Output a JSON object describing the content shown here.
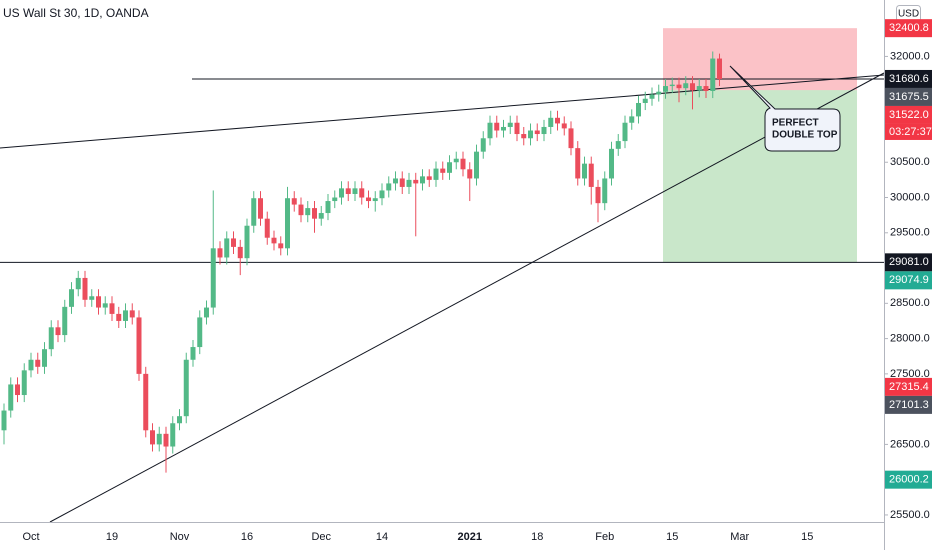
{
  "chart_data": {
    "type": "candlestick",
    "title": "US Wall St 30, 1D, OANDA",
    "currency": "USD",
    "annotation": [
      "PERFECT",
      "DOUBLE TOP"
    ],
    "up_color": "#53b987",
    "down_color": "#eb4d5c",
    "ylim": [
      25400,
      32800
    ],
    "yticks": [
      {
        "value": 32000,
        "label": "32000.0"
      },
      {
        "value": 30500,
        "label": "30500.0"
      },
      {
        "value": 30000,
        "label": "30000.0"
      },
      {
        "value": 29500,
        "label": "29500.0"
      },
      {
        "value": 28500,
        "label": "28500.0"
      },
      {
        "value": 28000,
        "label": "28000.0"
      },
      {
        "value": 27500,
        "label": "27500.0"
      },
      {
        "value": 26500,
        "label": "26500.0"
      },
      {
        "value": 25500,
        "label": "25500.0"
      }
    ],
    "categories": [
      null,
      null,
      null,
      null,
      "Oct",
      null,
      null,
      null,
      null,
      null,
      null,
      null,
      null,
      null,
      null,
      null,
      "19",
      null,
      null,
      null,
      null,
      null,
      null,
      null,
      null,
      null,
      "Nov",
      null,
      null,
      null,
      null,
      null,
      null,
      null,
      null,
      null,
      "16",
      null,
      null,
      null,
      null,
      null,
      null,
      null,
      null,
      null,
      null,
      "Dec",
      null,
      null,
      null,
      null,
      null,
      null,
      null,
      null,
      "14",
      null,
      null,
      null,
      null,
      null,
      null,
      null,
      null,
      null,
      null,
      null,
      null,
      "2021",
      null,
      null,
      null,
      null,
      null,
      null,
      null,
      null,
      null,
      "18",
      null,
      null,
      null,
      null,
      null,
      null,
      null,
      null,
      null,
      "Feb",
      null,
      null,
      null,
      null,
      null,
      null,
      null,
      null,
      null,
      "15",
      null,
      null,
      null,
      null,
      null,
      null,
      null,
      null,
      null,
      "Mar",
      null,
      null,
      null,
      null,
      null,
      null,
      null,
      null,
      null,
      "15"
    ],
    "open": [
      26700,
      26980,
      27350,
      27200,
      27550,
      27700,
      27600,
      27850,
      28160,
      28050,
      28450,
      28700,
      28860,
      28550,
      28600,
      28440,
      28500,
      28350,
      28250,
      28400,
      28300,
      27500,
      26700,
      26500,
      26650,
      26470,
      26800,
      26900,
      27700,
      27880,
      28300,
      28440,
      29280,
      29150,
      29420,
      29300,
      29140,
      29600,
      29990,
      29700,
      29430,
      29350,
      29280,
      29990,
      29900,
      29750,
      29850,
      29700,
      29780,
      29950,
      30000,
      30130,
      30050,
      30130,
      30000,
      29950,
      29990,
      30100,
      30200,
      30270,
      30150,
      30250,
      30200,
      30300,
      30250,
      30410,
      30350,
      30500,
      30550,
      30400,
      30270,
      30650,
      30840,
      31060,
      30950,
      31000,
      31060,
      30900,
      30840,
      30950,
      30900,
      31000,
      31130,
      31050,
      30980,
      30700,
      30270,
      30480,
      30150,
      29920,
      30270,
      30690,
      30800,
      31060,
      31150,
      31340,
      31400,
      31460,
      31500,
      31580,
      31600,
      31550,
      31620,
      31520,
      31580,
      31510,
      31970,
      null,
      null,
      null,
      null,
      null,
      null,
      null,
      null,
      null,
      null,
      null,
      null,
      null
    ],
    "high": [
      27080,
      27450,
      27450,
      27650,
      27800,
      27800,
      27950,
      28260,
      28260,
      28550,
      28800,
      28960,
      28960,
      28700,
      28700,
      28600,
      28600,
      28450,
      28500,
      28500,
      28400,
      27600,
      26800,
      26750,
      26750,
      26900,
      27000,
      27800,
      27980,
      28400,
      28540,
      30100,
      29380,
      29520,
      29520,
      29400,
      29700,
      30090,
      30090,
      29800,
      29530,
      29450,
      30150,
      30090,
      30000,
      29950,
      29950,
      29880,
      30050,
      30100,
      30230,
      30230,
      30230,
      30230,
      30100,
      30090,
      30200,
      30300,
      30370,
      30370,
      30350,
      30350,
      30400,
      30400,
      30510,
      30510,
      30600,
      30650,
      30650,
      30500,
      30750,
      30940,
      31160,
      31160,
      31100,
      31160,
      31160,
      31000,
      31050,
      31050,
      31100,
      31230,
      31230,
      31150,
      31080,
      30800,
      30580,
      30580,
      30250,
      30370,
      30790,
      30900,
      31160,
      31250,
      31440,
      31500,
      31560,
      31600,
      31680,
      31700,
      31700,
      31720,
      31720,
      31680,
      31680,
      32070,
      32040,
      null,
      null,
      null,
      null,
      null,
      null,
      null,
      null,
      null,
      null,
      null,
      null,
      null
    ],
    "low": [
      26500,
      26880,
      27100,
      27100,
      27450,
      27500,
      27500,
      27750,
      27950,
      27950,
      28350,
      28600,
      28450,
      28450,
      28340,
      28340,
      28250,
      28150,
      28150,
      28200,
      27400,
      26600,
      26400,
      26400,
      26100,
      26370,
      26700,
      26800,
      27600,
      27780,
      28200,
      28340,
      29050,
      29050,
      29200,
      28900,
      29040,
      29500,
      29600,
      29330,
      29250,
      29180,
      29180,
      29800,
      29650,
      29650,
      29500,
      29600,
      29680,
      29850,
      29900,
      29950,
      29950,
      29900,
      29850,
      29800,
      29890,
      30000,
      30100,
      30050,
      30050,
      29450,
      30100,
      30150,
      30150,
      30250,
      30250,
      30400,
      30300,
      29950,
      30170,
      30550,
      30740,
      30850,
      30850,
      30900,
      30800,
      30740,
      30740,
      30800,
      30800,
      30900,
      30950,
      30880,
      30600,
      30170,
      30170,
      29900,
      29650,
      29820,
      30170,
      30590,
      30700,
      30960,
      31050,
      31240,
      31300,
      31360,
      31400,
      31480,
      31350,
      31450,
      31250,
      31420,
      31410,
      31410,
      31580,
      null,
      null,
      null,
      null,
      null,
      null,
      null,
      null,
      null,
      null,
      null,
      null,
      null
    ],
    "close": [
      26980,
      27350,
      27200,
      27550,
      27700,
      27600,
      27850,
      28160,
      28050,
      28450,
      28700,
      28860,
      28550,
      28600,
      28440,
      28500,
      28350,
      28250,
      28400,
      28300,
      27500,
      26700,
      26500,
      26650,
      26470,
      26800,
      26900,
      27700,
      27880,
      28300,
      28440,
      29280,
      29150,
      29420,
      29300,
      29140,
      29600,
      29990,
      29700,
      29430,
      29350,
      29280,
      29990,
      29900,
      29750,
      29850,
      29700,
      29780,
      29950,
      30000,
      30130,
      30050,
      30130,
      30000,
      29950,
      29990,
      30100,
      30200,
      30270,
      30150,
      30250,
      30200,
      30300,
      30250,
      30410,
      30350,
      30500,
      30550,
      30400,
      30270,
      30650,
      30840,
      31060,
      30950,
      31000,
      31060,
      30900,
      30840,
      30950,
      30900,
      31000,
      31130,
      31050,
      30980,
      30700,
      30270,
      30480,
      30150,
      29920,
      30270,
      30690,
      30800,
      31060,
      31150,
      31340,
      31400,
      31460,
      31500,
      31580,
      31600,
      31550,
      31620,
      31520,
      31580,
      31510,
      31970,
      31680,
      null,
      null,
      null,
      null,
      null,
      null,
      null,
      null,
      null,
      null,
      null,
      null,
      null
    ],
    "price_labels": [
      {
        "value": 32400.8,
        "label": "32400.8",
        "color": "#f23645"
      },
      {
        "value": 31680.6,
        "label": "31680.6",
        "color": "#131722"
      },
      {
        "value": 31675.5,
        "label": "31675.5",
        "color": "#4c525e"
      },
      {
        "value": 31522.0,
        "label": "31522.0",
        "color": "#f23645",
        "countdown": "03:27:37"
      },
      {
        "value": 29081.0,
        "label": "29081.0",
        "color": "#131722"
      },
      {
        "value": 29074.9,
        "label": "29074.9",
        "color": "#22ab94"
      },
      {
        "value": 27315.4,
        "label": "27315.4",
        "color": "#f23645"
      },
      {
        "value": 27101.3,
        "label": "27101.3",
        "color": "#4c525e"
      },
      {
        "value": 26000.2,
        "label": "26000.2",
        "color": "#22ab94"
      }
    ]
  }
}
